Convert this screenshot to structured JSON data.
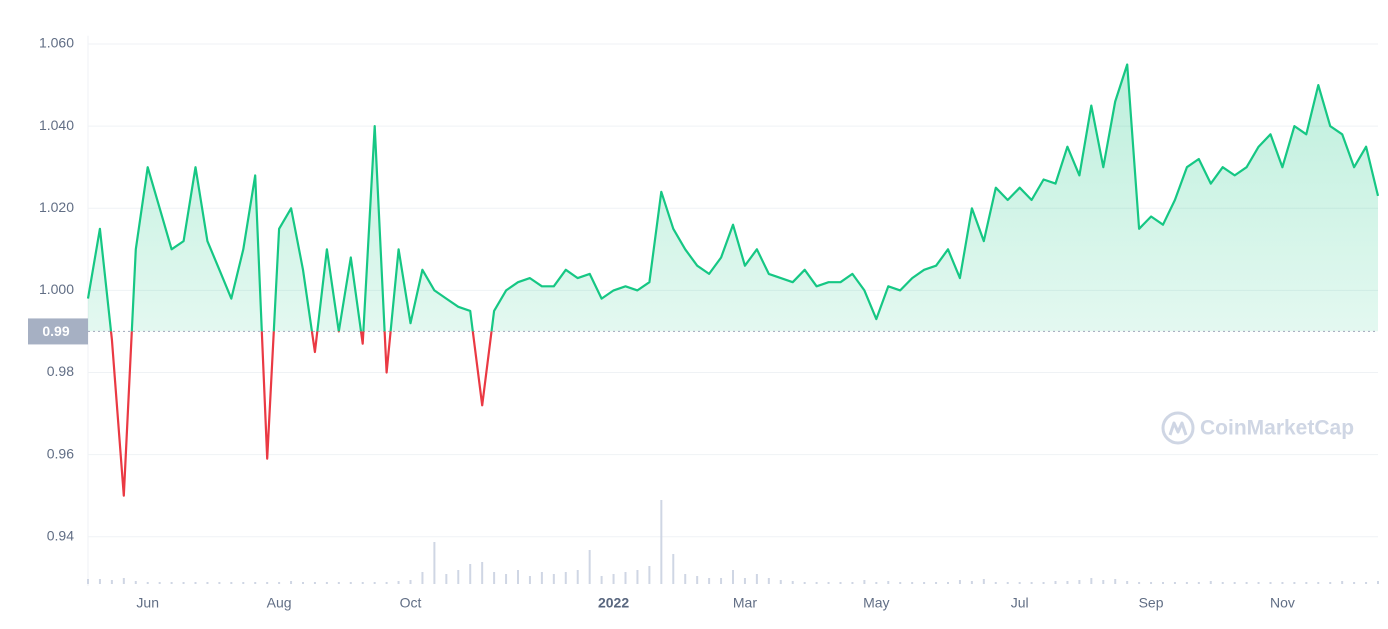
{
  "chart_data": {
    "type": "line",
    "color": "#16c784",
    "below_color": "#ea3943",
    "grid": true,
    "watermark": "CoinMarketCap",
    "baseline": {
      "value": 0.99,
      "label": "0.99"
    },
    "ylim": [
      0.928,
      1.062
    ],
    "yticks": [
      0.94,
      0.96,
      0.98,
      {
        "value": 1.0,
        "label": "1.000"
      },
      {
        "value": 1.02,
        "label": "1.020"
      },
      {
        "value": 1.04,
        "label": "1.040"
      },
      {
        "value": 1.06,
        "label": "1.060"
      }
    ],
    "categories": [
      null,
      null,
      null,
      null,
      null,
      "Jun",
      null,
      null,
      null,
      null,
      null,
      null,
      null,
      null,
      null,
      null,
      "Aug",
      null,
      null,
      null,
      null,
      null,
      null,
      null,
      null,
      null,
      null,
      "Oct",
      null,
      null,
      null,
      null,
      null,
      null,
      null,
      null,
      null,
      null,
      null,
      null,
      null,
      null,
      null,
      null,
      "2022",
      null,
      null,
      null,
      null,
      null,
      null,
      null,
      null,
      null,
      null,
      "Mar",
      null,
      null,
      null,
      null,
      null,
      null,
      null,
      null,
      null,
      null,
      "May",
      null,
      null,
      null,
      null,
      null,
      null,
      null,
      null,
      null,
      null,
      null,
      "Jul",
      null,
      null,
      null,
      null,
      null,
      null,
      null,
      null,
      null,
      null,
      "Sep",
      null,
      null,
      null,
      null,
      null,
      null,
      null,
      null,
      null,
      null,
      "Nov",
      null,
      null,
      null,
      null,
      null,
      null,
      null,
      null
    ],
    "values": [
      0.998,
      1.015,
      0.988,
      0.95,
      1.01,
      1.03,
      1.02,
      1.01,
      1.012,
      1.03,
      1.012,
      1.005,
      0.998,
      1.01,
      1.028,
      0.959,
      1.015,
      1.02,
      1.005,
      0.985,
      1.01,
      0.99,
      1.008,
      0.987,
      1.04,
      0.98,
      1.01,
      0.992,
      1.005,
      1.0,
      0.998,
      0.996,
      0.995,
      0.972,
      0.995,
      1.0,
      1.002,
      1.003,
      1.001,
      1.001,
      1.005,
      1.003,
      1.004,
      0.998,
      1.0,
      1.001,
      1.0,
      1.002,
      1.024,
      1.015,
      1.01,
      1.006,
      1.004,
      1.008,
      1.016,
      1.006,
      1.01,
      1.004,
      1.003,
      1.002,
      1.005,
      1.001,
      1.002,
      1.002,
      1.004,
      1.0,
      0.993,
      1.001,
      1.0,
      1.003,
      1.005,
      1.006,
      1.01,
      1.003,
      1.02,
      1.012,
      1.025,
      1.022,
      1.025,
      1.022,
      1.027,
      1.026,
      1.035,
      1.028,
      1.045,
      1.03,
      1.046,
      1.055,
      1.015,
      1.018,
      1.016,
      1.022,
      1.03,
      1.032,
      1.026,
      1.03,
      1.028,
      1.03,
      1.035,
      1.038,
      1.03,
      1.04,
      1.038,
      1.05,
      1.04,
      1.038,
      1.03,
      1.035,
      1.023
    ],
    "volume": [
      5,
      5,
      4,
      6,
      3,
      2,
      2,
      2,
      2,
      2,
      2,
      2,
      2,
      2,
      2,
      2,
      2,
      3,
      2,
      2,
      2,
      2,
      2,
      2,
      2,
      2,
      3,
      4,
      12,
      42,
      10,
      14,
      20,
      22,
      12,
      10,
      14,
      8,
      12,
      10,
      12,
      14,
      34,
      8,
      10,
      12,
      14,
      18,
      84,
      30,
      10,
      8,
      6,
      6,
      14,
      6,
      10,
      6,
      4,
      3,
      2,
      2,
      2,
      2,
      2,
      4,
      2,
      3,
      2,
      2,
      2,
      2,
      2,
      4,
      3,
      5,
      2,
      2,
      2,
      2,
      2,
      3,
      3,
      4,
      6,
      4,
      5,
      3,
      2,
      2,
      2,
      2,
      2,
      2,
      3,
      2,
      2,
      2,
      2,
      2,
      2,
      2,
      2,
      2,
      2,
      3,
      2,
      2,
      3
    ]
  }
}
